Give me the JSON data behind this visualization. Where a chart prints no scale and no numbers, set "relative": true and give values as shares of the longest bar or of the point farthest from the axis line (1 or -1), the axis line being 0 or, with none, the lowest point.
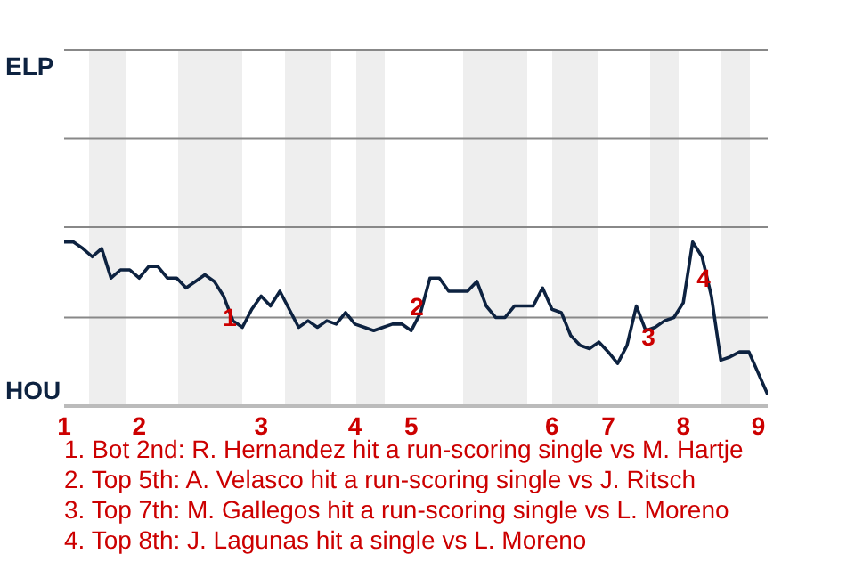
{
  "chart_data": {
    "type": "line",
    "relative": true,
    "legend": false,
    "marker": "none",
    "line_style": "solid",
    "categories": [
      "1",
      null,
      null,
      null,
      null,
      null,
      null,
      null,
      "2",
      null,
      null,
      null,
      null,
      null,
      null,
      null,
      null,
      null,
      null,
      null,
      null,
      "3",
      null,
      null,
      null,
      null,
      null,
      null,
      null,
      null,
      null,
      "4",
      null,
      null,
      null,
      null,
      null,
      "5",
      null,
      null,
      null,
      null,
      null,
      null,
      null,
      null,
      null,
      null,
      null,
      null,
      null,
      null,
      "6",
      null,
      null,
      null,
      null,
      null,
      "7",
      null,
      null,
      null,
      null,
      null,
      null,
      null,
      "8",
      null,
      null,
      null,
      null,
      null,
      null,
      null,
      "9",
      null
    ],
    "ref_lines": [
      {
        "axis": "y",
        "value": 0.54,
        "label": null,
        "color": "#888888"
      },
      {
        "axis": "y",
        "value": 1.09,
        "label": null,
        "color": "#888888"
      },
      {
        "axis": "y",
        "value": 1.63,
        "label": null,
        "color": "#888888"
      },
      {
        "axis": "y",
        "value": 2.17,
        "label": "ELP",
        "color": "#888888"
      }
    ],
    "series": [
      {
        "color": "#0d2240",
        "values": [
          1,
          1,
          0.96,
          0.91,
          0.96,
          0.78,
          0.83,
          0.83,
          0.78,
          0.85,
          0.85,
          0.78,
          0.78,
          0.72,
          0.76,
          0.8,
          0.76,
          0.67,
          0.52,
          0.48,
          0.59,
          0.67,
          0.61,
          0.7,
          0.59,
          0.48,
          0.52,
          0.48,
          0.52,
          0.5,
          0.57,
          0.5,
          0.48,
          0.46,
          0.48,
          0.5,
          0.5,
          0.46,
          0.57,
          0.78,
          0.78,
          0.7,
          0.7,
          0.7,
          0.76,
          0.61,
          0.54,
          0.54,
          0.61,
          0.61,
          0.61,
          0.72,
          0.59,
          0.57,
          0.43,
          0.37,
          0.35,
          0.39,
          0.33,
          0.26,
          0.37,
          0.61,
          0.46,
          0.48,
          0.52,
          0.54,
          0.63,
          1,
          0.91,
          0.67,
          0.28,
          0.3,
          0.33,
          0.33,
          0.2,
          0.07
        ]
      }
    ],
    "annotations": [
      "HOU",
      "1",
      "2",
      "3",
      "4",
      "1. Bot 2nd: R. Hernandez hit a run-scoring single vs M. Hartje",
      "2. Top 5th: A. Velasco hit a run-scoring single vs J. Ritsch",
      "3. Top 7th: M. Gallegos hit a run-scoring single vs L. Moreno",
      "4. Top 8th: J. Lagunas hit a single vs L. Moreno"
    ]
  }
}
